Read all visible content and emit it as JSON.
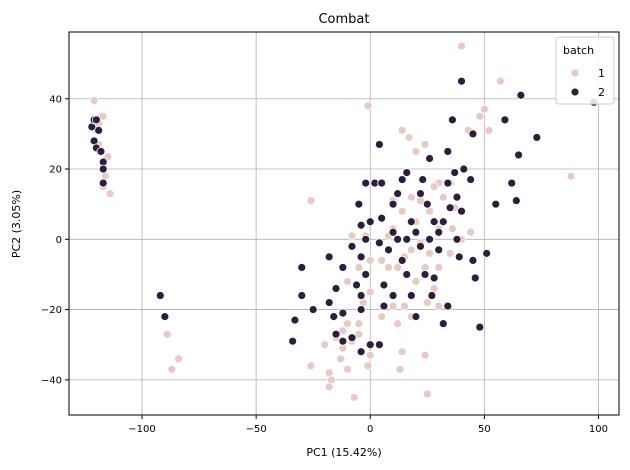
{
  "chart_data": {
    "type": "scatter",
    "title": "Combat",
    "xlabel": "PC1 (15.42%)",
    "ylabel": "PC2 (3.05%)",
    "xlim": [
      -132,
      109
    ],
    "ylim": [
      -50,
      59
    ],
    "xticks": [
      -100,
      -50,
      0,
      50,
      100
    ],
    "yticks": [
      -40,
      -20,
      0,
      20,
      40
    ],
    "grid": true,
    "legend": {
      "title": "batch",
      "placement": "top-right"
    },
    "series": [
      {
        "name": "1",
        "color": "#e8c9c5",
        "points": [
          [
            -121,
            39.5
          ],
          [
            -118,
            35
          ],
          [
            -117,
            35
          ],
          [
            -119,
            27
          ],
          [
            -115,
            23.5
          ],
          [
            -116,
            18
          ],
          [
            -117,
            15
          ],
          [
            -114,
            13
          ],
          [
            -120,
            31
          ],
          [
            -119,
            33
          ],
          [
            -89,
            -27
          ],
          [
            -87,
            -37
          ],
          [
            -84,
            -34
          ],
          [
            40,
            55
          ],
          [
            57,
            45
          ],
          [
            50,
            37
          ],
          [
            48,
            35
          ],
          [
            43,
            31
          ],
          [
            52,
            31
          ],
          [
            45,
            30
          ],
          [
            -1,
            38
          ],
          [
            14,
            31
          ],
          [
            17,
            29
          ],
          [
            20,
            25
          ],
          [
            24,
            27
          ],
          [
            88,
            18
          ],
          [
            35,
            16
          ],
          [
            30,
            16
          ],
          [
            -26,
            11
          ],
          [
            10,
            11
          ],
          [
            18,
            12
          ],
          [
            28,
            15
          ],
          [
            22,
            11
          ],
          [
            32,
            12
          ],
          [
            37,
            9
          ],
          [
            26,
            8
          ],
          [
            14,
            8
          ],
          [
            20,
            5
          ],
          [
            30,
            3
          ],
          [
            10,
            3
          ],
          [
            8,
            1
          ],
          [
            -8,
            1
          ],
          [
            -2,
            1
          ],
          [
            36,
            3
          ],
          [
            44,
            2
          ],
          [
            40,
            0
          ],
          [
            22,
            -1
          ],
          [
            18,
            -3
          ],
          [
            26,
            -4
          ],
          [
            35,
            -4
          ],
          [
            15,
            -5
          ],
          [
            5,
            -6
          ],
          [
            0,
            -6
          ],
          [
            8,
            -8
          ],
          [
            24,
            -8
          ],
          [
            30,
            -8
          ],
          [
            12,
            -8
          ],
          [
            -5,
            -8
          ],
          [
            -10,
            -12
          ],
          [
            20,
            -12
          ],
          [
            28,
            -14
          ],
          [
            25,
            -18
          ],
          [
            0,
            -15
          ],
          [
            10,
            -19
          ],
          [
            15,
            -19
          ],
          [
            5,
            -22
          ],
          [
            30,
            -19
          ],
          [
            12,
            -24
          ],
          [
            -10,
            -24
          ],
          [
            -5,
            -24
          ],
          [
            -12,
            -26
          ],
          [
            -5,
            -27
          ],
          [
            -8,
            -29
          ],
          [
            -15,
            -28
          ],
          [
            -20,
            -30
          ],
          [
            -12,
            -31
          ],
          [
            -13,
            -34
          ],
          [
            0,
            -33
          ],
          [
            -26,
            -36
          ],
          [
            -18,
            -38
          ],
          [
            -10,
            -37
          ],
          [
            -17,
            -40
          ],
          [
            -18,
            -42
          ],
          [
            -7,
            -45
          ],
          [
            24,
            -33
          ],
          [
            -1,
            -36
          ],
          [
            13,
            -37
          ],
          [
            14,
            -32
          ],
          [
            25,
            -44
          ],
          [
            18,
            -22
          ],
          [
            -3,
            -18
          ]
        ]
      },
      {
        "name": "2",
        "color": "#2d1e3e",
        "points": [
          [
            -122,
            32
          ],
          [
            -121,
            34
          ],
          [
            -120,
            34
          ],
          [
            -119,
            31
          ],
          [
            -121,
            28
          ],
          [
            -120,
            26
          ],
          [
            -117,
            22
          ],
          [
            -117,
            20
          ],
          [
            -117,
            16
          ],
          [
            -118,
            25
          ],
          [
            -92,
            -16
          ],
          [
            -90,
            -22
          ],
          [
            98,
            39
          ],
          [
            66,
            41
          ],
          [
            59,
            34
          ],
          [
            73,
            29
          ],
          [
            40,
            45
          ],
          [
            36,
            34
          ],
          [
            45,
            30
          ],
          [
            4,
            27
          ],
          [
            34,
            25
          ],
          [
            26,
            23
          ],
          [
            65,
            24
          ],
          [
            37,
            19
          ],
          [
            41,
            20
          ],
          [
            16,
            19
          ],
          [
            14,
            17
          ],
          [
            23,
            17
          ],
          [
            44,
            17
          ],
          [
            2,
            16
          ],
          [
            5,
            16
          ],
          [
            34,
            16
          ],
          [
            -2,
            16
          ],
          [
            12,
            13
          ],
          [
            62,
            16
          ],
          [
            22,
            13
          ],
          [
            38,
            12
          ],
          [
            10,
            10
          ],
          [
            -5,
            10
          ],
          [
            25,
            10
          ],
          [
            35,
            9
          ],
          [
            40,
            8
          ],
          [
            5,
            6
          ],
          [
            0,
            5
          ],
          [
            28,
            5
          ],
          [
            32,
            5
          ],
          [
            18,
            5
          ],
          [
            64,
            11
          ],
          [
            55,
            10
          ],
          [
            -4,
            4
          ],
          [
            20,
            2
          ],
          [
            30,
            2
          ],
          [
            10,
            2
          ],
          [
            -2,
            0
          ],
          [
            12,
            0
          ],
          [
            16,
            0
          ],
          [
            26,
            0
          ],
          [
            38,
            0
          ],
          [
            -8,
            -2
          ],
          [
            4,
            -1
          ],
          [
            8,
            -3
          ],
          [
            22,
            -2
          ],
          [
            30,
            -3
          ],
          [
            -18,
            -5
          ],
          [
            -4,
            -5
          ],
          [
            14,
            -6
          ],
          [
            39,
            -5
          ],
          [
            45,
            -6
          ],
          [
            51,
            -4
          ],
          [
            -30,
            -8
          ],
          [
            -2,
            -10
          ],
          [
            16,
            -10
          ],
          [
            24,
            -10
          ],
          [
            -12,
            -8
          ],
          [
            -6,
            -13
          ],
          [
            6,
            -13
          ],
          [
            28,
            -11
          ],
          [
            46,
            -11
          ],
          [
            -15,
            -14
          ],
          [
            -30,
            -16
          ],
          [
            -4,
            -16
          ],
          [
            10,
            -16
          ],
          [
            18,
            -16
          ],
          [
            27,
            -16
          ],
          [
            -18,
            -18
          ],
          [
            -33,
            -23
          ],
          [
            -25,
            -20
          ],
          [
            -16,
            -22
          ],
          [
            -12,
            -21
          ],
          [
            -4,
            -20
          ],
          [
            6,
            -19
          ],
          [
            20,
            -22
          ],
          [
            34,
            -19
          ],
          [
            32,
            -24
          ],
          [
            48,
            -25
          ],
          [
            -15,
            -27
          ],
          [
            -12,
            -29
          ],
          [
            -8,
            -28
          ],
          [
            0,
            -30
          ],
          [
            -34,
            -29
          ],
          [
            -4,
            -32
          ],
          [
            4,
            -30
          ]
        ]
      }
    ]
  }
}
